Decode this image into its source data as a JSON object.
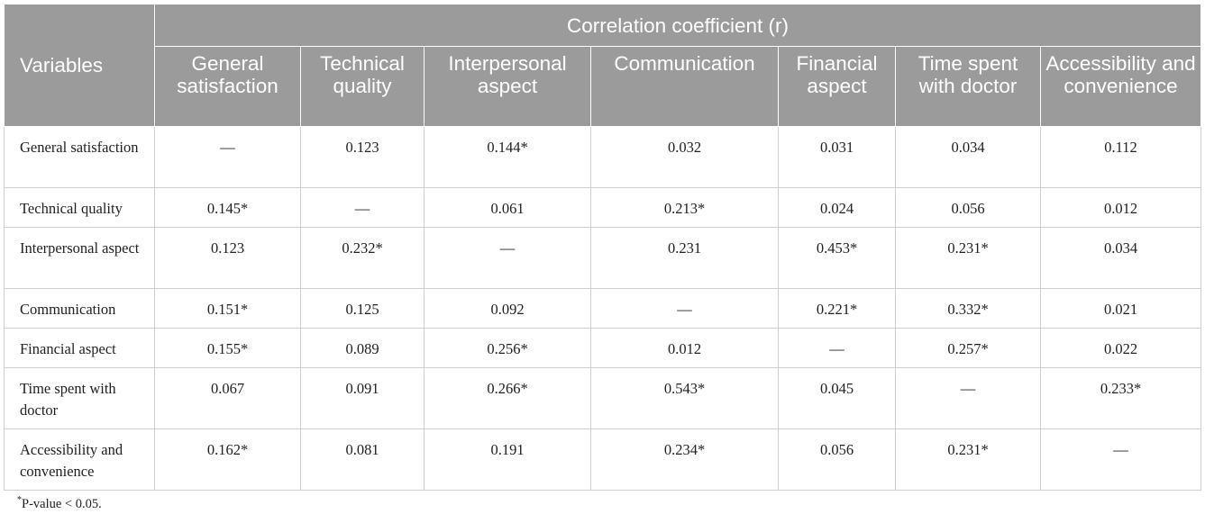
{
  "table": {
    "group_header": "Correlation coefficient (r)",
    "row_header": "Variables",
    "columns": [
      "General satisfaction",
      "Technical quality",
      "Interpersonal aspect",
      "Communication",
      "Financial aspect",
      "Time spent with doctor",
      "Accessibility and convenience"
    ],
    "rows": [
      {
        "label": "General satisfaction",
        "cells": [
          "—",
          "0.123",
          "0.144*",
          "0.032",
          "0.031",
          "0.034",
          "0.112"
        ]
      },
      {
        "label": "Technical quality",
        "cells": [
          "0.145*",
          "—",
          "0.061",
          "0.213*",
          "0.024",
          "0.056",
          "0.012"
        ]
      },
      {
        "label": "Interpersonal aspect",
        "cells": [
          "0.123",
          "0.232*",
          "—",
          "0.231",
          "0.453*",
          "0.231*",
          "0.034"
        ]
      },
      {
        "label": "Communication",
        "cells": [
          "0.151*",
          "0.125",
          "0.092",
          "—",
          "0.221*",
          "0.332*",
          "0.021"
        ]
      },
      {
        "label": "Financial aspect",
        "cells": [
          "0.155*",
          "0.089",
          "0.256*",
          "0.012",
          "—",
          "0.257*",
          "0.022"
        ]
      },
      {
        "label": "Time spent with doctor",
        "cells": [
          "0.067",
          "0.091",
          "0.266*",
          "0.543*",
          "0.045",
          "—",
          "0.233*"
        ]
      },
      {
        "label": "Accessibility and convenience",
        "cells": [
          "0.162*",
          "0.081",
          "0.191",
          "0.234*",
          "0.056",
          "0.231*",
          "—"
        ]
      }
    ]
  },
  "footnote": {
    "marker": "*",
    "text": "P-value < 0.05."
  }
}
